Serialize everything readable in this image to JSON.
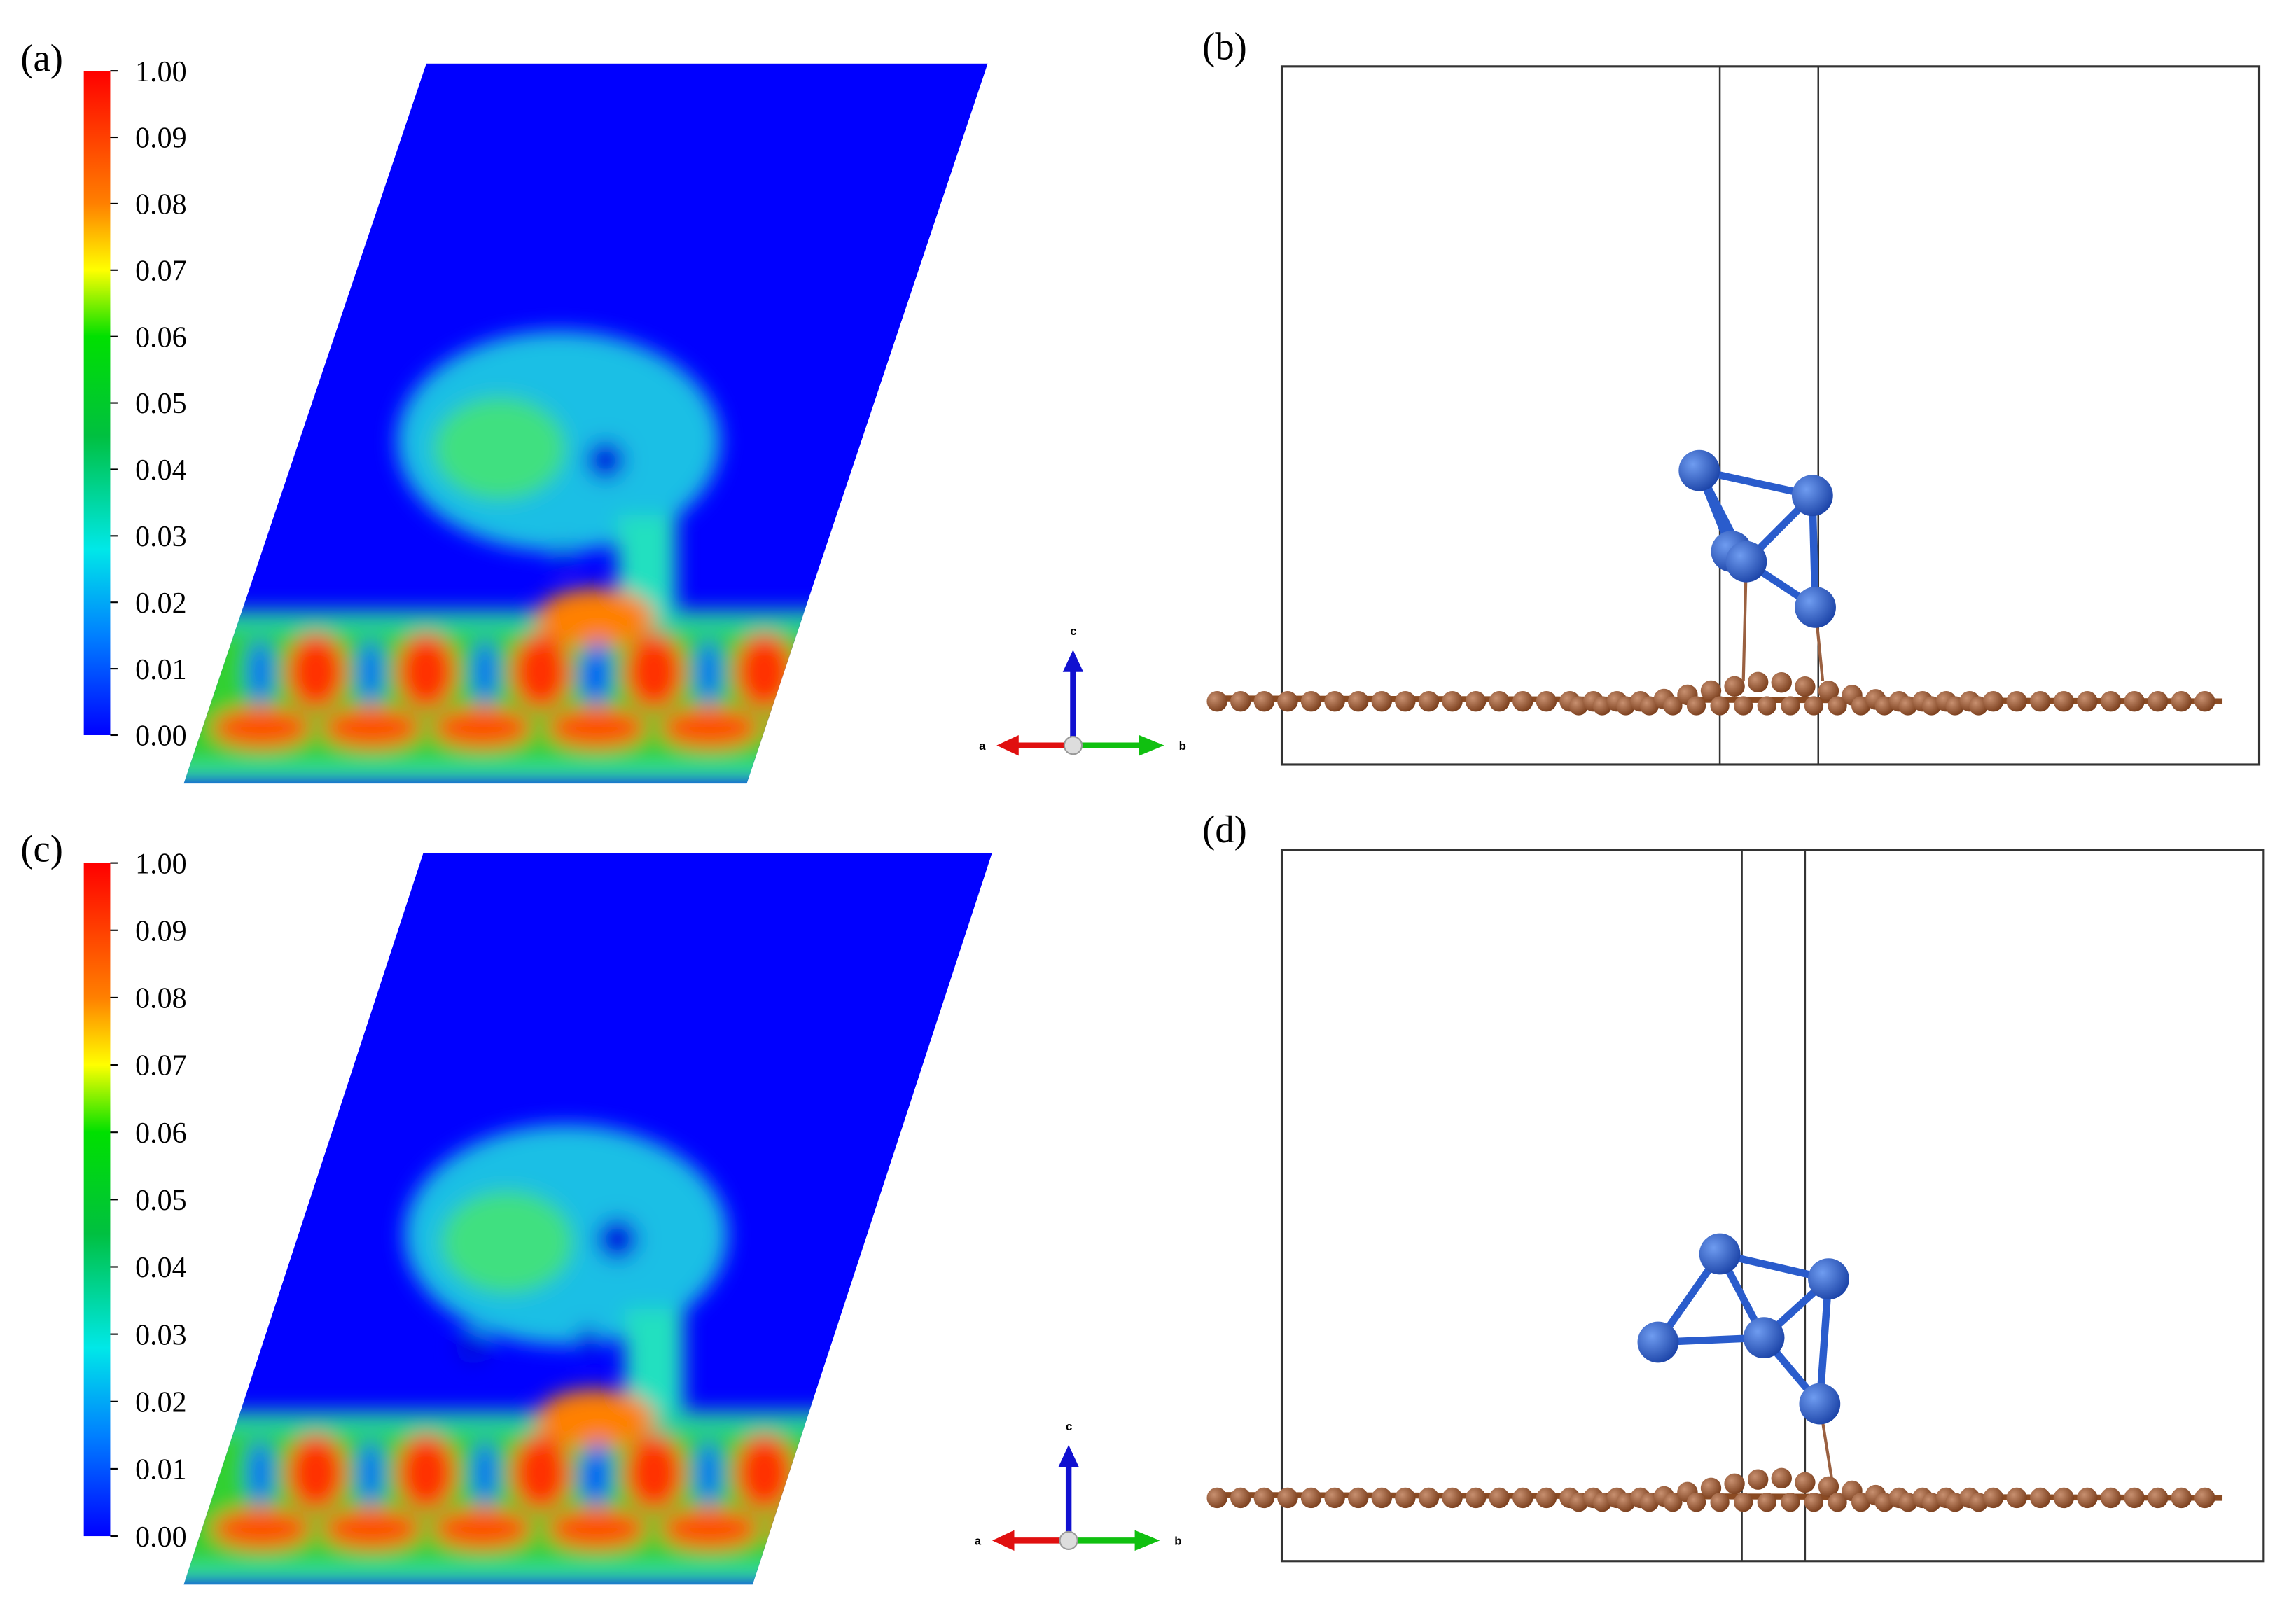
{
  "panels": [
    {
      "label": "(a)",
      "colorbar_ticks": [
        "1.00",
        "0.09",
        "0.08",
        "0.07",
        "0.06",
        "0.05",
        "0.04",
        "0.03",
        "0.02",
        "0.01",
        "0.00"
      ],
      "axis_labels": [
        "a",
        "b",
        "c"
      ]
    },
    {
      "label": "(b)"
    },
    {
      "label": "(c)",
      "colorbar_ticks": [
        "1.00",
        "0.09",
        "0.08",
        "0.07",
        "0.06",
        "0.05",
        "0.04",
        "0.03",
        "0.02",
        "0.01",
        "0.00"
      ],
      "axis_labels": [
        "a",
        "b",
        "c"
      ]
    },
    {
      "label": "(d)"
    }
  ]
}
